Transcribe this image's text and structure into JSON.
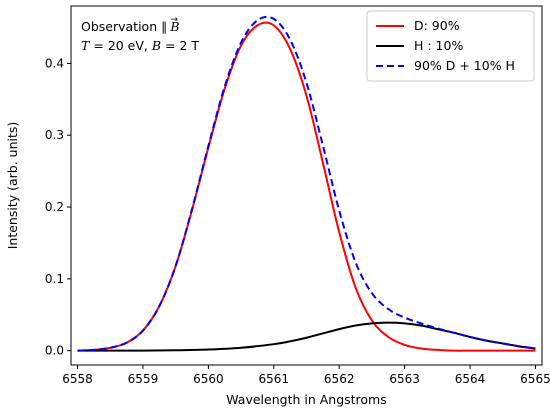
{
  "chart_data": {
    "type": "line",
    "xlabel": "Wavelength in Angstroms",
    "ylabel": "Intensity (arb. units)",
    "xlim": [
      6557.9,
      6565.1
    ],
    "ylim": [
      -0.02,
      0.48
    ],
    "xticks": [
      6558,
      6559,
      6560,
      6561,
      6562,
      6563,
      6564,
      6565
    ],
    "yticks": [
      0.0,
      0.1,
      0.2,
      0.3,
      0.4
    ],
    "ytick_labels": [
      "0.0",
      "0.1",
      "0.2",
      "0.3",
      "0.4"
    ],
    "grid": false,
    "legend_position": "top-right",
    "annotation": {
      "line1_prefix": "Observation  ∥",
      "line1_symbol": "B",
      "line1_arrow": "→",
      "line2_T": "T",
      "line2_T_value": " = 20 eV,  ",
      "line2_B": "B",
      "line2_B_value": " = 2 T"
    },
    "series": [
      {
        "name": "D: 90%",
        "color": "#ff0000",
        "style": "solid",
        "x": [
          6558.0,
          6558.25,
          6558.5,
          6558.75,
          6559.0,
          6559.25,
          6559.5,
          6559.75,
          6560.0,
          6560.25,
          6560.5,
          6560.75,
          6561.0,
          6561.25,
          6561.5,
          6561.75,
          6562.0,
          6562.25,
          6562.5,
          6562.75,
          6563.0,
          6563.25,
          6563.5,
          6563.75,
          6564.0,
          6564.25,
          6564.5,
          6564.75,
          6565.0
        ],
        "y": [
          0.0,
          0.001,
          0.004,
          0.011,
          0.028,
          0.062,
          0.118,
          0.196,
          0.283,
          0.365,
          0.425,
          0.453,
          0.453,
          0.42,
          0.355,
          0.262,
          0.165,
          0.088,
          0.042,
          0.019,
          0.008,
          0.003,
          0.001,
          0.0,
          0.0,
          0.0,
          0.0,
          0.0,
          0.0
        ]
      },
      {
        "name": "H : 10%",
        "color": "#000000",
        "style": "solid",
        "x": [
          6558.0,
          6558.5,
          6559.0,
          6559.5,
          6560.0,
          6560.5,
          6561.0,
          6561.25,
          6561.5,
          6561.75,
          6562.0,
          6562.25,
          6562.5,
          6562.75,
          6563.0,
          6563.25,
          6563.5,
          6563.75,
          6564.0,
          6564.25,
          6564.5,
          6564.75,
          6565.0
        ],
        "y": [
          0.0,
          0.0,
          0.0,
          0.0005,
          0.0015,
          0.004,
          0.009,
          0.013,
          0.018,
          0.024,
          0.03,
          0.035,
          0.038,
          0.039,
          0.038,
          0.035,
          0.03,
          0.025,
          0.019,
          0.014,
          0.01,
          0.006,
          0.003
        ]
      },
      {
        "name": "90% D +  10% H",
        "color": "#0000ff",
        "style": "dashed",
        "x": [
          6558.0,
          6558.25,
          6558.5,
          6558.75,
          6559.0,
          6559.25,
          6559.5,
          6559.75,
          6560.0,
          6560.25,
          6560.5,
          6560.75,
          6561.0,
          6561.25,
          6561.5,
          6561.75,
          6562.0,
          6562.25,
          6562.5,
          6562.75,
          6563.0,
          6563.25,
          6563.5,
          6563.75,
          6564.0,
          6564.25,
          6564.5,
          6564.75,
          6565.0
        ],
        "y": [
          0.0,
          0.001,
          0.004,
          0.011,
          0.028,
          0.062,
          0.118,
          0.197,
          0.285,
          0.368,
          0.429,
          0.46,
          0.462,
          0.433,
          0.373,
          0.286,
          0.195,
          0.123,
          0.08,
          0.058,
          0.046,
          0.038,
          0.031,
          0.025,
          0.019,
          0.014,
          0.01,
          0.006,
          0.003
        ]
      }
    ]
  }
}
